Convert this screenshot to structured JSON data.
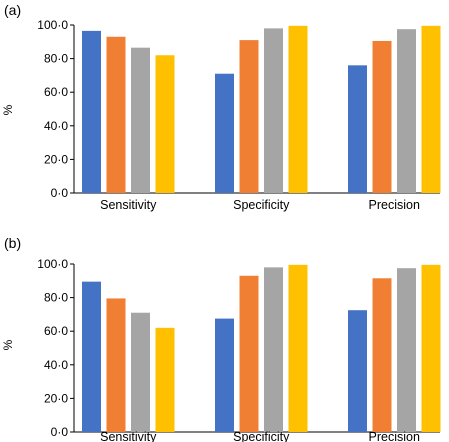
{
  "chart_data": [
    {
      "type": "bar",
      "panel_label": "(a)",
      "ylabel": "%",
      "ylim": [
        0,
        100
      ],
      "yticks": [
        "0·0",
        "20·0",
        "40·0",
        "60·0",
        "80·0",
        "100·0"
      ],
      "categories": [
        "Sensitivity",
        "Specificity",
        "Precision"
      ],
      "series": [
        {
          "color": "#4472C4",
          "values": [
            96.5,
            71,
            76
          ]
        },
        {
          "color": "#F07F33",
          "values": [
            93,
            91,
            90.5
          ]
        },
        {
          "color": "#A5A5A5",
          "values": [
            86.5,
            98,
            97.5
          ]
        },
        {
          "color": "#FFC000",
          "values": [
            82,
            99.5,
            99.5
          ]
        }
      ]
    },
    {
      "type": "bar",
      "panel_label": "(b)",
      "ylabel": "%",
      "ylim": [
        0,
        100
      ],
      "yticks": [
        "0·0",
        "20·0",
        "40·0",
        "60·0",
        "80·0",
        "100·0"
      ],
      "categories": [
        "Sensitivity",
        "Specificity",
        "Precision"
      ],
      "series": [
        {
          "color": "#4472C4",
          "values": [
            89.5,
            67.5,
            72.5
          ]
        },
        {
          "color": "#F07F33",
          "values": [
            79.5,
            93,
            91.5
          ]
        },
        {
          "color": "#A5A5A5",
          "values": [
            71,
            98,
            97.5
          ]
        },
        {
          "color": "#FFC000",
          "values": [
            62,
            99.5,
            99.5
          ]
        }
      ]
    }
  ]
}
